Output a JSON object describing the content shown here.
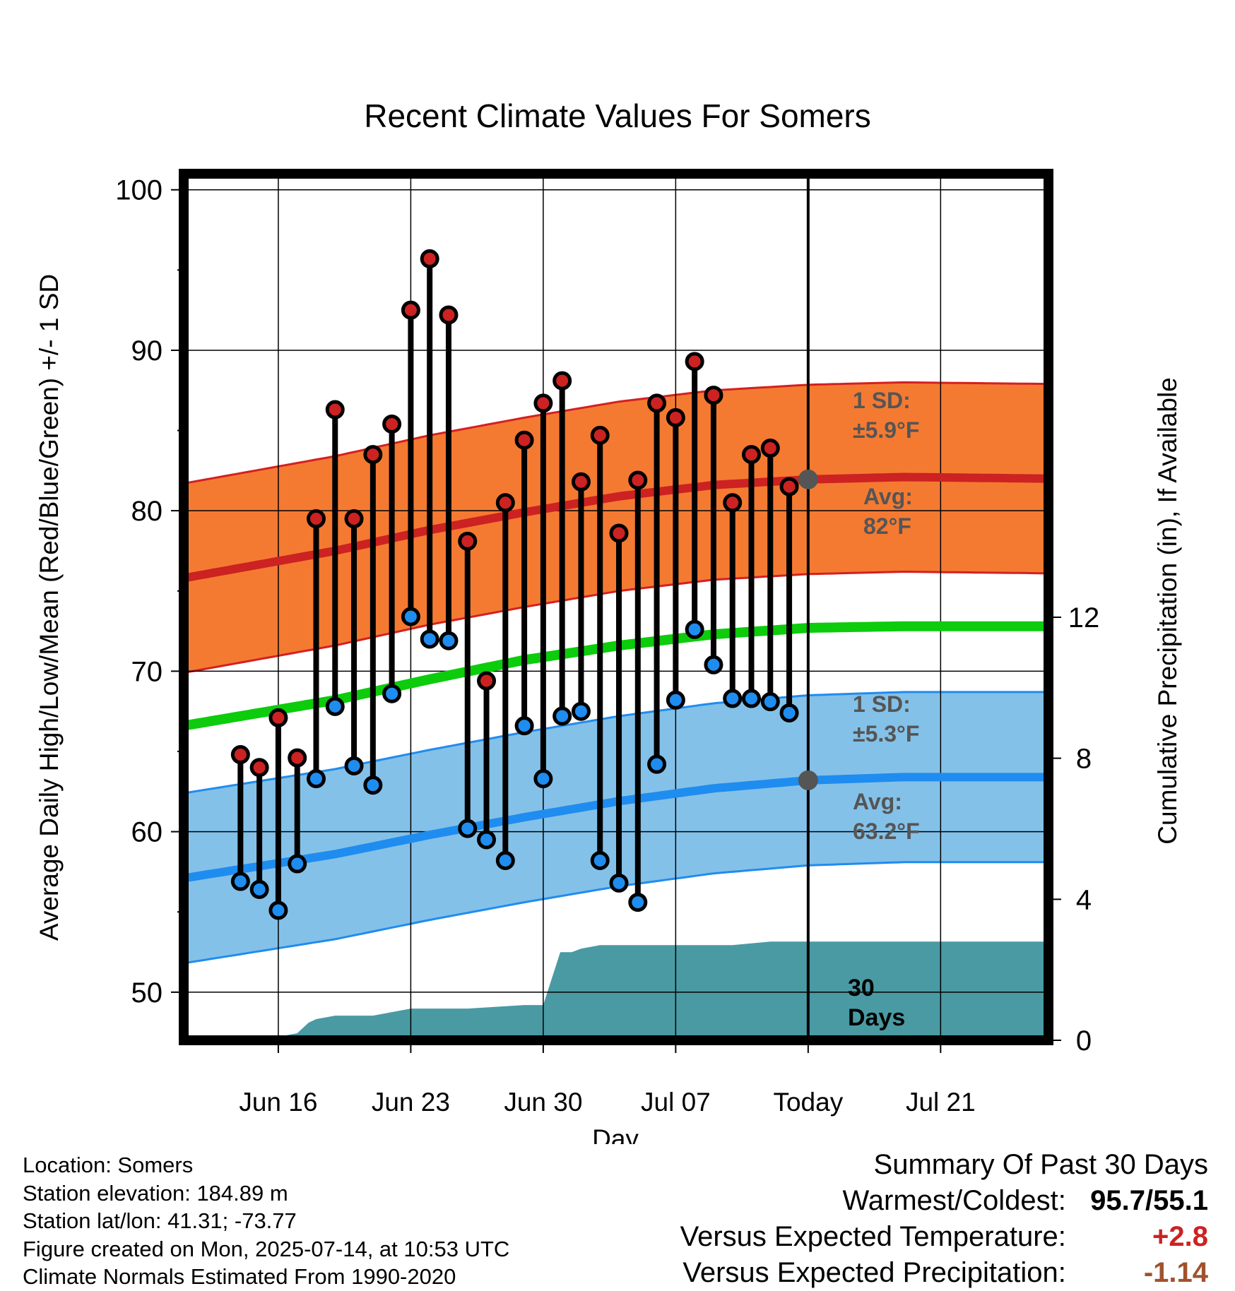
{
  "chart_data": {
    "type": "line",
    "title": "Recent Climate Values For Somers",
    "xlabel": "Day",
    "ylabel": "Average Daily High/Low/Mean (Red/Blue/Green) +/- 1 SD",
    "y2label": "Cumulative Precipitation (in), If Available",
    "ylim": [
      47,
      101
    ],
    "y2lim": [
      0,
      24.58
    ],
    "xlim": [
      -3.0,
      42.7
    ],
    "x_ticks": [
      {
        "day": 2,
        "label": "Jun 16"
      },
      {
        "day": 9,
        "label": "Jun 23"
      },
      {
        "day": 16,
        "label": "Jun 30"
      },
      {
        "day": 23,
        "label": "Jul 07"
      },
      {
        "day": 30,
        "label": "Today"
      },
      {
        "day": 37,
        "label": "Jul 21"
      }
    ],
    "y_ticks": [
      50,
      60,
      70,
      80,
      90,
      100
    ],
    "y2_ticks": [
      0,
      4,
      8,
      12
    ],
    "grid": true,
    "days": [
      0,
      1,
      2,
      3,
      4,
      5,
      6,
      7,
      8,
      9,
      10,
      11,
      12,
      13,
      14,
      15,
      16,
      17,
      18,
      19,
      20,
      21,
      22,
      23,
      24,
      25,
      26,
      27,
      28,
      29
    ],
    "highs": [
      64.8,
      64.0,
      67.1,
      64.6,
      79.5,
      86.3,
      79.5,
      83.5,
      85.4,
      92.5,
      95.7,
      92.2,
      78.1,
      69.4,
      80.5,
      84.4,
      86.7,
      88.1,
      81.8,
      84.7,
      78.6,
      81.9,
      86.7,
      85.8,
      89.3,
      87.2,
      80.5,
      83.5,
      83.9,
      81.5
    ],
    "lows": [
      56.9,
      56.4,
      55.1,
      58.0,
      63.3,
      67.8,
      64.1,
      62.9,
      68.6,
      73.4,
      72.0,
      71.9,
      60.2,
      59.5,
      58.2,
      66.6,
      63.3,
      67.2,
      67.5,
      58.2,
      56.8,
      55.6,
      64.2,
      68.2,
      72.6,
      70.4,
      68.3,
      68.3,
      68.1,
      67.4
    ],
    "normal_days": [
      -3.0,
      5,
      10,
      15,
      20,
      25,
      30,
      35,
      42.7
    ],
    "normal_high": [
      75.8,
      77.5,
      78.8,
      79.9,
      80.9,
      81.6,
      81.95,
      82.1,
      82.0
    ],
    "normal_high_sd": 5.9,
    "normal_low": [
      57.1,
      58.6,
      59.8,
      60.9,
      61.9,
      62.7,
      63.2,
      63.4,
      63.4
    ],
    "normal_low_sd": 5.3,
    "normal_mean": [
      66.6,
      68.2,
      69.5,
      70.7,
      71.6,
      72.3,
      72.7,
      72.8,
      72.8
    ],
    "precip_days": [
      -3.0,
      0,
      1,
      1.5,
      2,
      3,
      3.6,
      4,
      5,
      6,
      7,
      8,
      9,
      10,
      12,
      15,
      16,
      16.9,
      17.5,
      18,
      19,
      20,
      22,
      24,
      26,
      28,
      30,
      35,
      42.7
    ],
    "precip_cum": [
      0,
      0,
      0,
      0,
      0.1,
      0.2,
      0.5,
      0.6,
      0.7,
      0.7,
      0.7,
      0.8,
      0.9,
      0.9,
      0.9,
      1.0,
      1.0,
      2.5,
      2.5,
      2.6,
      2.7,
      2.7,
      2.7,
      2.7,
      2.7,
      2.8,
      2.8,
      2.8,
      2.8
    ],
    "today_day": 30,
    "annotations": {
      "high_sd_label1": "1 SD:",
      "high_sd_label2": "±5.9°F",
      "high_avg_label1": "Avg:",
      "high_avg_label2": "82°F",
      "low_sd_label1": "1 SD:",
      "low_sd_label2": "±5.3°F",
      "low_avg_label1": "Avg:",
      "low_avg_label2": "63.2°F",
      "days_label1": "30",
      "days_label2": "Days"
    },
    "colors": {
      "high_band": "#f47a32",
      "high_band_edge": "#d42020",
      "high_line": "#cc2222",
      "low_band": "#84c1e8",
      "low_band_edge": "#1f8cf0",
      "low_line": "#1f8cf0",
      "mean_line": "#0ccc0c",
      "precip": "#4a9aa3",
      "high_dot": "#cc2222",
      "low_dot": "#1f8cf0",
      "annotation": "#555555",
      "today_dot": "#555555"
    }
  },
  "footer": {
    "location": "Location: Somers",
    "elevation": "Station elevation: 184.89 m",
    "latlon": "Station lat/lon: 41.31; -73.77",
    "created": "Figure created on Mon, 2025-07-14, at 10:53 UTC",
    "normals": "Climate Normals Estimated From 1990-2020"
  },
  "summary": {
    "title": "Summary Of Past 30 Days",
    "warmest_label": "Warmest/Coldest:",
    "warmest_value": "95.7/55.1",
    "temp_label": "Versus Expected Temperature:",
    "temp_value": "+2.8",
    "temp_color": "#cc2222",
    "precip_label": "Versus Expected Precipitation:",
    "precip_value": "-1.14",
    "precip_color": "#a0522d"
  }
}
